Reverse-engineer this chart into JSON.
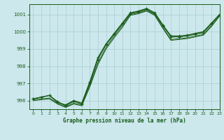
{
  "title": "Graphe pression niveau de la mer (hPa)",
  "background_color": "#cce8ec",
  "grid_color": "#aacdd4",
  "line_color": "#1a5c1a",
  "xlim": [
    -0.5,
    23
  ],
  "ylim": [
    995.5,
    1001.6
  ],
  "yticks": [
    996,
    997,
    998,
    999,
    1000,
    1001
  ],
  "xticks": [
    0,
    1,
    2,
    3,
    4,
    5,
    6,
    7,
    8,
    9,
    10,
    11,
    12,
    13,
    14,
    15,
    16,
    17,
    18,
    19,
    20,
    21,
    22,
    23
  ],
  "series": [
    {
      "x": [
        0,
        1,
        2,
        3,
        4,
        5,
        6,
        7,
        8,
        9,
        10,
        11,
        12,
        13,
        14,
        15,
        16,
        17,
        18,
        19,
        20,
        21,
        22,
        23
      ],
      "y": [
        996.1,
        996.2,
        996.3,
        995.9,
        995.75,
        996.0,
        995.85,
        997.1,
        998.5,
        999.3,
        999.9,
        1000.5,
        1001.1,
        1001.2,
        1001.35,
        1001.1,
        1000.4,
        999.75,
        999.75,
        999.8,
        999.9,
        1000.0,
        1000.5,
        1001.0
      ],
      "marker": true,
      "lw": 1.0
    },
    {
      "x": [
        0,
        1,
        2,
        3,
        4,
        5,
        6,
        7,
        8,
        9,
        10,
        11,
        12,
        13,
        14,
        15,
        16,
        17,
        18,
        19,
        20,
        21,
        22,
        23
      ],
      "y": [
        996.1,
        996.2,
        996.3,
        995.95,
        995.7,
        995.95,
        995.8,
        997.0,
        998.4,
        999.25,
        999.85,
        1000.45,
        1001.05,
        1001.15,
        1001.3,
        1001.05,
        1000.35,
        999.7,
        999.7,
        999.75,
        999.85,
        999.95,
        1000.45,
        1001.0
      ],
      "marker": true,
      "lw": 0.8
    },
    {
      "x": [
        0,
        1,
        2,
        3,
        4,
        5,
        6,
        7,
        8,
        9,
        10,
        11,
        12,
        13,
        14,
        15,
        16,
        17,
        18,
        19,
        20,
        21,
        22,
        23
      ],
      "y": [
        996.05,
        996.1,
        996.15,
        995.85,
        995.65,
        995.85,
        995.75,
        996.9,
        998.2,
        999.1,
        999.75,
        1000.35,
        1001.0,
        1001.1,
        1001.25,
        1001.0,
        1000.25,
        999.55,
        999.6,
        999.65,
        999.75,
        999.85,
        1000.35,
        1000.95
      ],
      "marker": false,
      "lw": 0.7
    },
    {
      "x": [
        0,
        1,
        2,
        3,
        4,
        5,
        6,
        7,
        8,
        9,
        10,
        11,
        12,
        13,
        14,
        15,
        16,
        17,
        18,
        19,
        20,
        21,
        22,
        23
      ],
      "y": [
        996.0,
        996.05,
        996.1,
        995.8,
        995.6,
        995.8,
        995.7,
        996.8,
        998.1,
        999.0,
        999.65,
        1000.25,
        1000.95,
        1001.05,
        1001.2,
        1000.95,
        1000.2,
        999.5,
        999.55,
        999.6,
        999.7,
        999.8,
        1000.3,
        1000.9
      ],
      "marker": false,
      "lw": 0.7
    }
  ]
}
